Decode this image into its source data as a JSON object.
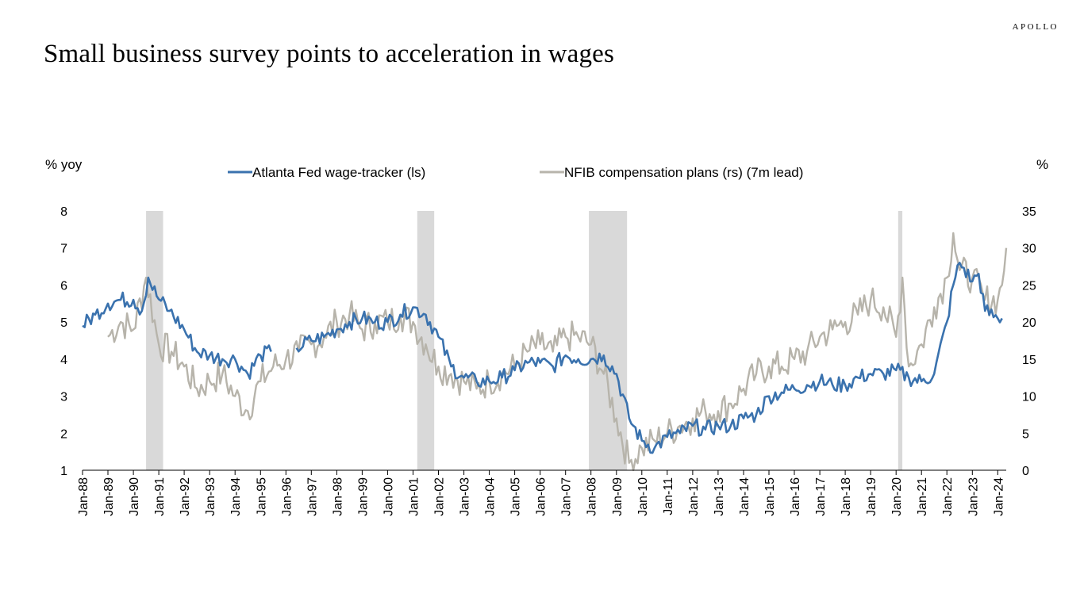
{
  "brand": "APOLLO",
  "title": "Small business survey points to acceleration in wages",
  "chart_data": {
    "type": "line",
    "left_axis_label": "% yoy",
    "right_axis_label": "%",
    "left_ylim": [
      1,
      8
    ],
    "right_ylim": [
      0,
      35
    ],
    "left_ticks": [
      "8",
      "7",
      "6",
      "5",
      "4",
      "3",
      "2",
      "1"
    ],
    "right_ticks": [
      "35",
      "30",
      "25",
      "20",
      "15",
      "10",
      "5",
      "0"
    ],
    "x_ticks": [
      "Jan-88",
      "Jan-89",
      "Jan-90",
      "Jan-91",
      "Jan-92",
      "Jan-93",
      "Jan-94",
      "Jan-95",
      "Jan-96",
      "Jan-97",
      "Jan-98",
      "Jan-99",
      "Jan-00",
      "Jan-01",
      "Jan-02",
      "Jan-03",
      "Jan-04",
      "Jan-05",
      "Jan-06",
      "Jan-07",
      "Jan-08",
      "Jan-09",
      "Jan-10",
      "Jan-11",
      "Jan-12",
      "Jan-13",
      "Jan-14",
      "Jan-15",
      "Jan-16",
      "Jan-17",
      "Jan-18",
      "Jan-19",
      "Jan-20",
      "Jan-21",
      "Jan-22",
      "Jan-23",
      "Jan-24"
    ],
    "x_range": [
      "Jan-88",
      "May-24"
    ],
    "grid": false,
    "legend_position": "top-center",
    "recessions": [
      {
        "start": "Jul-90",
        "end": "Mar-91"
      },
      {
        "start": "Mar-01",
        "end": "Nov-01"
      },
      {
        "start": "Dec-07",
        "end": "Jun-09"
      },
      {
        "start": "Feb-20",
        "end": "Apr-20"
      }
    ],
    "recession_color": "#d9d9d9",
    "series": [
      {
        "name": "Atlanta Fed wage-tracker (ls)",
        "axis": "left",
        "color": "#3a72ae",
        "points": [
          [
            "Jan-88",
            4.9
          ],
          [
            "Jul-88",
            5.2
          ],
          [
            "Jan-89",
            5.5
          ],
          [
            "Jul-89",
            5.6
          ],
          [
            "Jan-90",
            5.6
          ],
          [
            "May-90",
            5.3
          ],
          [
            "Aug-90",
            6.2
          ],
          [
            "Dec-90",
            5.7
          ],
          [
            "Jun-91",
            5.3
          ],
          [
            "Jan-92",
            4.8
          ],
          [
            "Jul-92",
            4.2
          ],
          [
            "Jan-93",
            4.1
          ],
          [
            "Jul-93",
            4.0
          ],
          [
            "Jan-94",
            4.0
          ],
          [
            "Jul-94",
            3.6
          ],
          [
            "Jan-95",
            4.1
          ],
          [
            "Jun-95",
            4.2
          ],
          [
            "Jun-96",
            4.3
          ],
          [
            "Jan-97",
            4.5
          ],
          [
            "Jul-97",
            4.6
          ],
          [
            "Jan-98",
            4.8
          ],
          [
            "Jul-98",
            5.0
          ],
          [
            "Jan-99",
            5.1
          ],
          [
            "Jul-99",
            5.0
          ],
          [
            "Jan-00",
            5.0
          ],
          [
            "Jul-00",
            5.2
          ],
          [
            "Jan-01",
            5.4
          ],
          [
            "Jul-01",
            5.2
          ],
          [
            "Jan-02",
            4.6
          ],
          [
            "Jul-02",
            3.8
          ],
          [
            "Jan-03",
            3.5
          ],
          [
            "Jul-03",
            3.4
          ],
          [
            "Jan-04",
            3.4
          ],
          [
            "Jul-04",
            3.5
          ],
          [
            "Jan-05",
            3.7
          ],
          [
            "Jul-05",
            3.9
          ],
          [
            "Jan-06",
            3.9
          ],
          [
            "Jul-06",
            3.8
          ],
          [
            "Jan-07",
            4.1
          ],
          [
            "Jul-07",
            4.0
          ],
          [
            "Jan-08",
            4.0
          ],
          [
            "Jul-08",
            4.1
          ],
          [
            "Jan-09",
            3.6
          ],
          [
            "Jul-09",
            2.4
          ],
          [
            "Jan-10",
            1.8
          ],
          [
            "Jul-10",
            1.6
          ],
          [
            "Jan-11",
            1.9
          ],
          [
            "Jul-11",
            2.0
          ],
          [
            "Jan-12",
            2.2
          ],
          [
            "Jul-12",
            2.1
          ],
          [
            "Jan-13",
            2.2
          ],
          [
            "Jul-13",
            2.2
          ],
          [
            "Jan-14",
            2.4
          ],
          [
            "Jul-14",
            2.5
          ],
          [
            "Jan-15",
            3.0
          ],
          [
            "Jul-15",
            3.1
          ],
          [
            "Jan-16",
            3.2
          ],
          [
            "Jul-16",
            3.3
          ],
          [
            "Jan-17",
            3.4
          ],
          [
            "Jul-17",
            3.3
          ],
          [
            "Jan-18",
            3.3
          ],
          [
            "Jul-18",
            3.5
          ],
          [
            "Jan-19",
            3.6
          ],
          [
            "Jul-19",
            3.6
          ],
          [
            "Jan-20",
            3.7
          ],
          [
            "Jul-20",
            3.5
          ],
          [
            "Jan-21",
            3.4
          ],
          [
            "Jul-21",
            3.6
          ],
          [
            "Jan-22",
            5.0
          ],
          [
            "Apr-22",
            6.0
          ],
          [
            "Jul-22",
            6.6
          ],
          [
            "Jan-23",
            6.1
          ],
          [
            "Apr-23",
            6.3
          ],
          [
            "Jul-23",
            5.3
          ],
          [
            "Jan-24",
            5.1
          ],
          [
            "Mar-24",
            5.1
          ]
        ]
      },
      {
        "name": "NFIB compensation plans (rs) (7m lead)",
        "axis": "right",
        "color": "#b7b4ab",
        "points": [
          [
            "Jan-89",
            18
          ],
          [
            "Jul-89",
            20
          ],
          [
            "Jan-90",
            19
          ],
          [
            "Jul-90",
            26
          ],
          [
            "Jan-91",
            17
          ],
          [
            "Jul-91",
            16
          ],
          [
            "Jan-92",
            14
          ],
          [
            "Jul-92",
            11
          ],
          [
            "Jan-93",
            12
          ],
          [
            "Jul-93",
            13
          ],
          [
            "Jan-94",
            10
          ],
          [
            "Jul-94",
            8
          ],
          [
            "Jan-95",
            12
          ],
          [
            "Jul-95",
            14
          ],
          [
            "Jan-96",
            15
          ],
          [
            "Jul-96",
            16
          ],
          [
            "Jan-97",
            17
          ],
          [
            "Jul-97",
            18
          ],
          [
            "Jan-98",
            20
          ],
          [
            "Jul-98",
            21
          ],
          [
            "Jan-99",
            19
          ],
          [
            "Jul-99",
            20
          ],
          [
            "Jan-00",
            20
          ],
          [
            "Jul-00",
            21
          ],
          [
            "Jan-01",
            20
          ],
          [
            "Jul-01",
            17
          ],
          [
            "Jan-02",
            14
          ],
          [
            "Jul-02",
            13
          ],
          [
            "Jan-03",
            12
          ],
          [
            "Jul-03",
            11
          ],
          [
            "Jan-04",
            12
          ],
          [
            "Jul-04",
            13
          ],
          [
            "Jan-05",
            14
          ],
          [
            "Jul-05",
            16
          ],
          [
            "Jan-06",
            17
          ],
          [
            "Jul-06",
            16
          ],
          [
            "Jan-07",
            18
          ],
          [
            "Jul-07",
            18
          ],
          [
            "Jan-08",
            17
          ],
          [
            "Jul-08",
            13
          ],
          [
            "Jan-09",
            7
          ],
          [
            "Jul-09",
            1
          ],
          [
            "Jan-10",
            3
          ],
          [
            "Jul-10",
            4
          ],
          [
            "Jan-11",
            5
          ],
          [
            "Jul-11",
            6
          ],
          [
            "Jan-12",
            7
          ],
          [
            "Jul-12",
            8
          ],
          [
            "Jan-13",
            8
          ],
          [
            "Jul-13",
            9
          ],
          [
            "Jan-14",
            11
          ],
          [
            "Jul-14",
            13
          ],
          [
            "Jan-15",
            14
          ],
          [
            "Jul-15",
            14
          ],
          [
            "Jan-16",
            15
          ],
          [
            "Jul-16",
            16
          ],
          [
            "Jan-17",
            18
          ],
          [
            "Jul-17",
            19
          ],
          [
            "Jan-18",
            20
          ],
          [
            "Jul-18",
            21
          ],
          [
            "Jan-19",
            23
          ],
          [
            "Jul-19",
            22
          ],
          [
            "Jan-20",
            18
          ],
          [
            "Apr-20",
            26
          ],
          [
            "Jul-20",
            14
          ],
          [
            "Jan-21",
            17
          ],
          [
            "Jul-21",
            22
          ],
          [
            "Jan-22",
            26
          ],
          [
            "Apr-22",
            32
          ],
          [
            "Jul-22",
            27
          ],
          [
            "Jan-23",
            26
          ],
          [
            "Jul-23",
            23
          ],
          [
            "Jan-24",
            23
          ],
          [
            "Mar-24",
            25
          ],
          [
            "May-24",
            30
          ]
        ]
      }
    ]
  }
}
